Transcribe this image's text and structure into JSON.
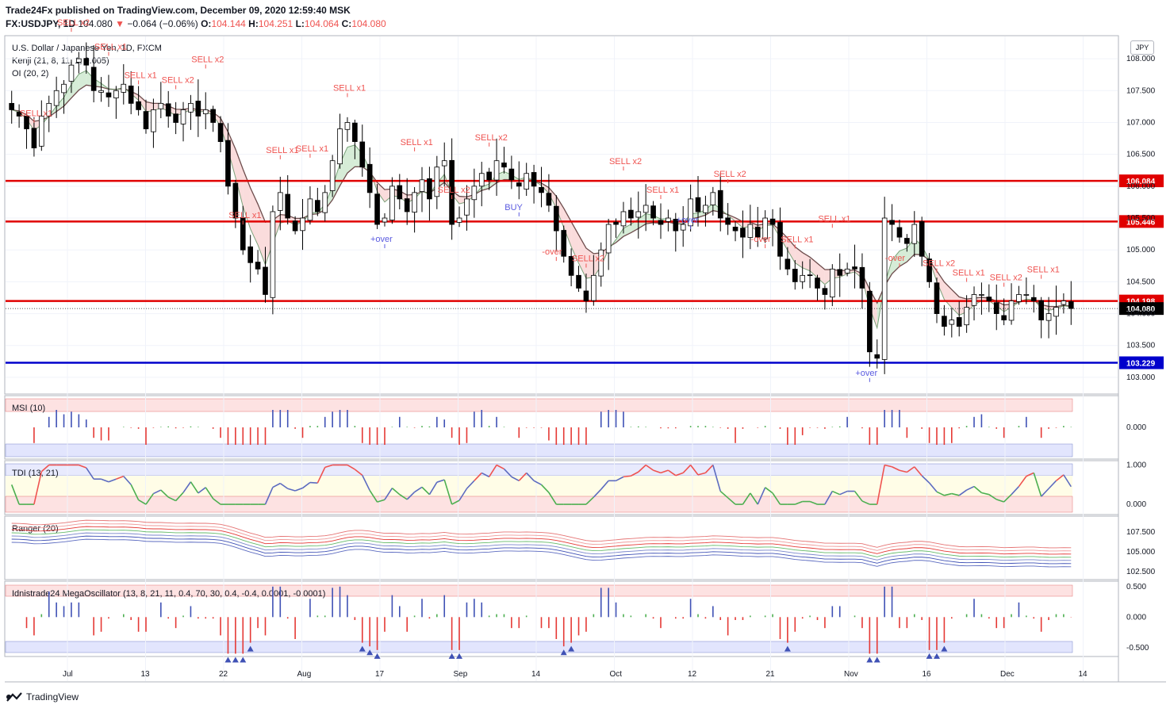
{
  "header": {
    "publisher_line": "Trade24Fx published on TradingView.com, December 09, 2020 12:59:40 MSK",
    "symbol": "FX:USDJPY, 1D",
    "last": "104.080",
    "change": "−0.064 (−0.06%)",
    "open_label": "O:",
    "open": "104.144",
    "high_label": "H:",
    "high": "104.251",
    "low_label": "L:",
    "low": "104.064",
    "close_label": "C:",
    "close": "104.080"
  },
  "main_pane": {
    "title": "U.S. Dollar / Japanese Yen, 1D, FXCM",
    "indicator1": "Kenji (21, 8, 11, 1, 0.005)",
    "indicator2": "OI (20, 2)",
    "currency": "JPY"
  },
  "msi_pane": {
    "title": "MSI (10)"
  },
  "tdi_pane": {
    "title": "TDI (13, 21)"
  },
  "ranger_pane": {
    "title": "Ranger (20)"
  },
  "mega_pane": {
    "title": "Idnistrade24 MegaOscillator (13, 8, 21, 11, 0.4, 70, 30, 0.4, -0.4, 0.0001, -0.0001)"
  },
  "footer": {
    "brand": "TradingView"
  },
  "colors": {
    "up_candle": "#ffffff",
    "down_candle": "#000000",
    "red_level": "#e00000",
    "blue_level": "#0000cc",
    "sell": "#ef5350",
    "buy": "#5b5be0",
    "green": "#4caf50"
  },
  "chart_data": [
    {
      "type": "candlestick",
      "title": "U.S. Dollar / Japanese Yen, 1D, FXCM",
      "x_ticks": [
        "Jul",
        "13",
        "22",
        "Aug",
        "17",
        "Sep",
        "14",
        "Oct",
        "12",
        "21",
        "Nov",
        "16",
        "Dec",
        "14"
      ],
      "y_ticks": [
        "108.000",
        "107.500",
        "107.000",
        "106.500",
        "106.000",
        "105.500",
        "105.000",
        "104.500",
        "104.000",
        "103.500",
        "103.000"
      ],
      "ylim": [
        102.8,
        108.3
      ],
      "horizontal_levels": [
        {
          "value": 106.084,
          "label": "106.084",
          "color": "#e00000"
        },
        {
          "value": 105.446,
          "label": "105.446",
          "color": "#e00000"
        },
        {
          "value": 104.198,
          "label": "104.198",
          "color": "#e00000"
        },
        {
          "value": 103.229,
          "label": "103.229",
          "color": "#0000cc"
        }
      ],
      "last_price": {
        "value": 104.08,
        "label": "104.080"
      },
      "close_series": [
        107.2,
        107.1,
        106.9,
        106.6,
        107.1,
        107.3,
        107.5,
        107.6,
        107.9,
        108.0,
        107.9,
        107.5,
        107.5,
        107.4,
        107.5,
        107.6,
        107.3,
        107.2,
        106.9,
        107.2,
        107.3,
        107.1,
        107.0,
        107.2,
        107.3,
        107.1,
        107.2,
        107.0,
        106.7,
        106.0,
        105.5,
        105.0,
        104.8,
        104.7,
        104.3,
        105.6,
        105.9,
        105.5,
        105.3,
        105.5,
        105.8,
        105.6,
        105.9,
        106.4,
        106.9,
        107.0,
        106.7,
        106.3,
        105.9,
        105.4,
        105.5,
        106.0,
        105.8,
        105.6,
        105.9,
        106.1,
        105.8,
        106.3,
        106.4,
        105.4,
        105.5,
        105.8,
        106.0,
        106.2,
        106.1,
        106.4,
        106.3,
        106.1,
        106.0,
        106.2,
        106.0,
        105.9,
        105.7,
        105.3,
        104.9,
        104.6,
        104.4,
        104.2,
        104.6,
        105.0,
        105.4,
        105.4,
        105.6,
        105.5,
        105.6,
        105.7,
        105.5,
        105.4,
        105.5,
        105.3,
        105.4,
        105.8,
        105.6,
        105.7,
        105.9,
        105.5,
        105.4,
        105.3,
        105.2,
        105.4,
        105.2,
        105.5,
        105.4,
        104.9,
        104.7,
        104.5,
        104.6,
        104.6,
        104.4,
        104.3,
        104.7,
        104.6,
        104.7,
        104.7,
        104.4,
        103.4,
        103.3,
        105.5,
        105.4,
        105.2,
        105.1,
        105.4,
        104.9,
        104.5,
        104.0,
        103.8,
        103.9,
        103.8,
        104.1,
        104.3,
        104.3,
        104.2,
        104.0,
        103.9,
        104.2,
        104.3,
        104.3,
        104.2,
        103.9,
        104.0,
        104.1,
        104.2,
        104.08
      ],
      "signals": [
        {
          "text": "SELL x1",
          "kind": "sell"
        },
        {
          "text": "SELL x2",
          "kind": "sell"
        },
        {
          "text": "SELL x1",
          "kind": "sell"
        },
        {
          "text": "SELL x1",
          "kind": "sell"
        },
        {
          "text": "SELL x2",
          "kind": "sell"
        },
        {
          "text": "SELL x2",
          "kind": "sell"
        },
        {
          "text": "SELL x1",
          "kind": "sell"
        },
        {
          "text": "SELL x1",
          "kind": "sell"
        },
        {
          "text": "SELL x1",
          "kind": "sell"
        },
        {
          "text": "SELL x1",
          "kind": "sell"
        },
        {
          "text": "+over",
          "kind": "buy"
        },
        {
          "text": "SELL x1",
          "kind": "sell"
        },
        {
          "text": "SELL x2",
          "kind": "sell"
        },
        {
          "text": "SELL x2",
          "kind": "sell"
        },
        {
          "text": "BUY",
          "kind": "buy"
        },
        {
          "text": "-over",
          "kind": "sell"
        },
        {
          "text": "SELL x2",
          "kind": "sell"
        },
        {
          "text": "SELL x2",
          "kind": "sell"
        },
        {
          "text": "SELL x1",
          "kind": "sell"
        },
        {
          "text": "+over",
          "kind": "buy"
        },
        {
          "text": "SELL x2",
          "kind": "sell"
        },
        {
          "text": "-over",
          "kind": "sell"
        },
        {
          "text": "SELL x1",
          "kind": "sell"
        },
        {
          "text": "SELL x1",
          "kind": "sell"
        },
        {
          "text": "+over",
          "kind": "buy"
        },
        {
          "text": "-over",
          "kind": "sell"
        },
        {
          "text": "SELL x2",
          "kind": "sell"
        },
        {
          "text": "SELL x1",
          "kind": "sell"
        },
        {
          "text": "SELL x2",
          "kind": "sell"
        },
        {
          "text": "SELL x1",
          "kind": "sell"
        }
      ]
    },
    {
      "type": "bar",
      "title": "MSI (10)",
      "y_ticks": [
        "0.000"
      ]
    },
    {
      "type": "line",
      "title": "TDI (13, 21)",
      "y_ticks": [
        "1.000",
        "0.000"
      ],
      "ylim": [
        -0.2,
        1.05
      ]
    },
    {
      "type": "line",
      "title": "Ranger (20)",
      "y_ticks": [
        "107.500",
        "105.000",
        "102.500"
      ],
      "ylim": [
        101.8,
        109.2
      ]
    },
    {
      "type": "bar",
      "title": "Idnistrade24 MegaOscillator (13, 8, 21, 11, 0.4, 70, 30, 0.4, -0.4, 0.0001, -0.0001)",
      "y_ticks": [
        "0.500",
        "0.000",
        "-0.500"
      ],
      "ylim": [
        -0.62,
        0.55
      ]
    }
  ]
}
